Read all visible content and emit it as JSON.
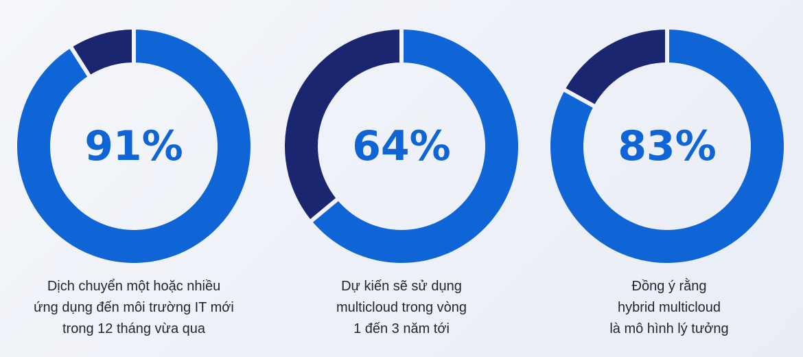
{
  "colors": {
    "primary": "#0f64d6",
    "secondary": "#1b2670",
    "value_text": "#0f64d6",
    "caption_text": "#1f2433",
    "separator": "#f1f3f8"
  },
  "chart_data": [
    {
      "type": "pie",
      "variant": "donut",
      "value": 91,
      "value_label": "91%",
      "slices": [
        {
          "label": "Dịch chuyển một hoặc nhiều ứng dụng",
          "value": 91
        },
        {
          "label": "",
          "value": 9
        }
      ],
      "caption": [
        "Dịch chuyển một hoặc nhiều",
        "ứng dụng đến môi trường IT mới",
        "trong 12 tháng vừa qua"
      ]
    },
    {
      "type": "pie",
      "variant": "donut",
      "value": 64,
      "value_label": "64%",
      "slices": [
        {
          "label": "Dự kiến sẽ sử dụng multicloud",
          "value": 64
        },
        {
          "label": "",
          "value": 36
        }
      ],
      "caption": [
        "Dự kiến sẽ sử dụng",
        "multicloud trong vòng",
        "1 đến 3 năm tới"
      ]
    },
    {
      "type": "pie",
      "variant": "donut",
      "value": 83,
      "value_label": "83%",
      "slices": [
        {
          "label": "Đồng ý rằng hybrid multicloud là mô hình lý tưởng",
          "value": 83
        },
        {
          "label": "",
          "value": 17
        }
      ],
      "caption": [
        "Đồng ý rằng",
        "hybrid multicloud",
        "là mô hình lý tưởng"
      ]
    }
  ]
}
